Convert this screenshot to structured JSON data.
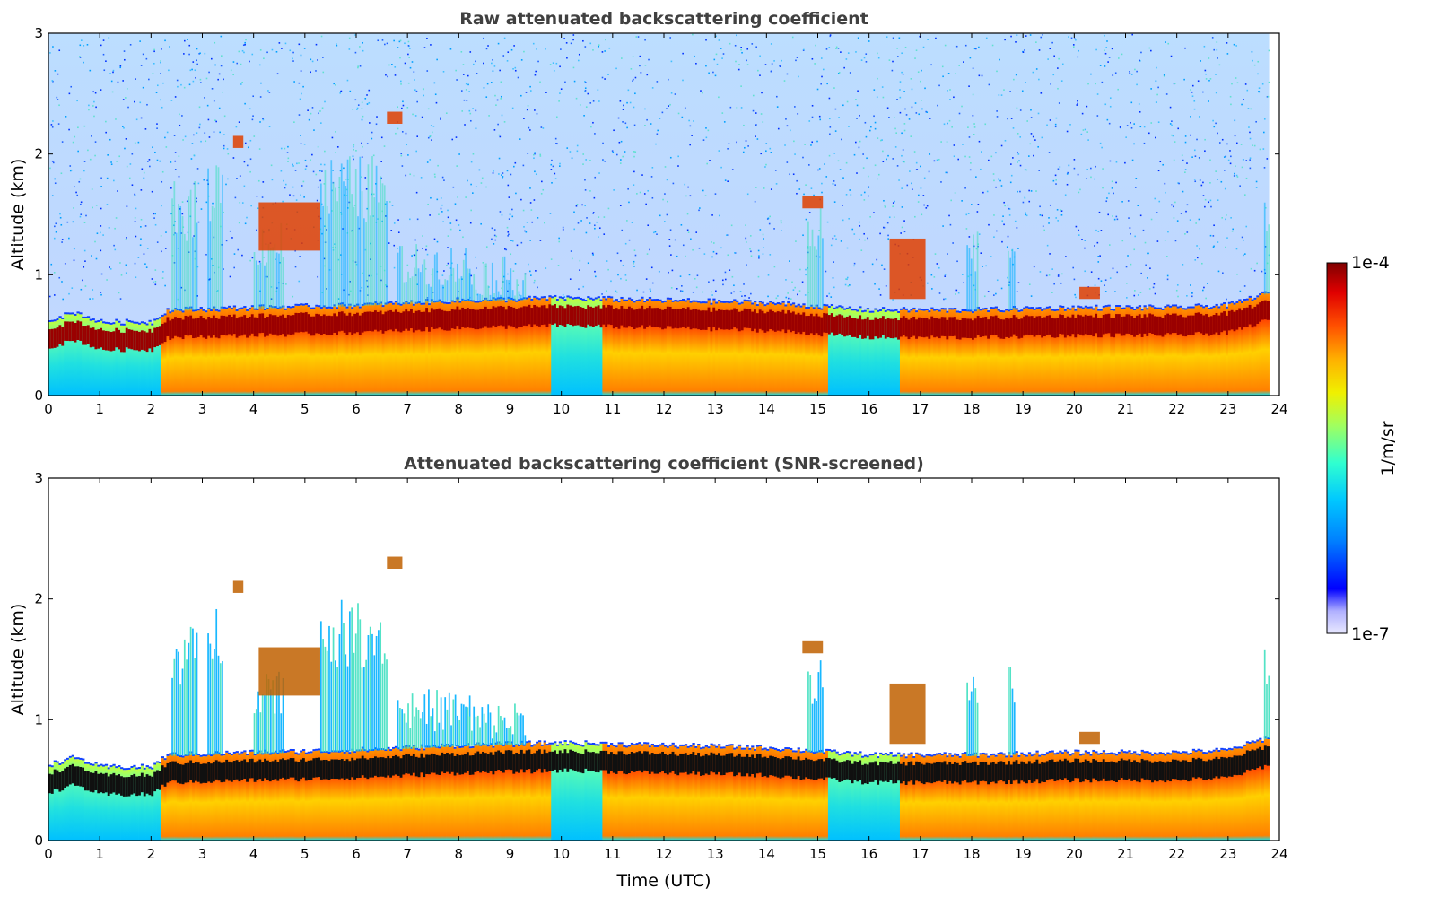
{
  "chart_data": [
    {
      "type": "heatmap",
      "title": "Raw attenuated backscattering coefficient",
      "xlabel": "",
      "ylabel": "Altitude (km)",
      "xlim": [
        0,
        24
      ],
      "ylim": [
        0,
        3
      ],
      "x_ticks": [
        0,
        1,
        2,
        3,
        4,
        5,
        6,
        7,
        8,
        9,
        10,
        11,
        12,
        13,
        14,
        15,
        16,
        17,
        18,
        19,
        20,
        21,
        22,
        23,
        24
      ],
      "y_ticks": [
        0,
        1,
        2,
        3
      ],
      "x_tick_labels": [
        "0",
        "1",
        "2",
        "3",
        "4",
        "5",
        "6",
        "7",
        "8",
        "9",
        "10",
        "11",
        "12",
        "13",
        "14",
        "15",
        "16",
        "17",
        "18",
        "19",
        "20",
        "21",
        "22",
        "23",
        "24"
      ],
      "y_tick_labels": [
        "0",
        "1",
        "2",
        "3"
      ],
      "screened": false,
      "data_end_hour": 23.8,
      "cloud_layer_top_km": [
        [
          0,
          0.62
        ],
        [
          0.5,
          0.68
        ],
        [
          1,
          0.6
        ],
        [
          2,
          0.6
        ],
        [
          2.3,
          0.7
        ],
        [
          4,
          0.72
        ],
        [
          6,
          0.74
        ],
        [
          8,
          0.78
        ],
        [
          10,
          0.8
        ],
        [
          12,
          0.78
        ],
        [
          14,
          0.76
        ],
        [
          16,
          0.7
        ],
        [
          18,
          0.7
        ],
        [
          20,
          0.72
        ],
        [
          22,
          0.72
        ],
        [
          23,
          0.74
        ],
        [
          23.8,
          0.85
        ]
      ],
      "features": [
        {
          "x": [
            3.6,
            3.8
          ],
          "altitude_km": 2.1,
          "label": ""
        },
        {
          "x": [
            6.6,
            6.9
          ],
          "altitude_km": 2.3,
          "label": ""
        },
        {
          "x": [
            4.1,
            5.3
          ],
          "altitude_km": [
            1.2,
            1.6
          ],
          "label": ""
        },
        {
          "x": [
            14.7,
            15.1
          ],
          "altitude_km": 1.6,
          "label": ""
        },
        {
          "x": [
            16.4,
            17.1
          ],
          "altitude_km": [
            0.8,
            1.3
          ],
          "label": ""
        },
        {
          "x": [
            20.1,
            20.5
          ],
          "altitude_km": 0.85,
          "label": ""
        }
      ]
    },
    {
      "type": "heatmap",
      "title": "Attenuated backscattering coefficient (SNR-screened)",
      "xlabel": "Time (UTC)",
      "ylabel": "Altitude (km)",
      "xlim": [
        0,
        24
      ],
      "ylim": [
        0,
        3
      ],
      "x_ticks": [
        0,
        1,
        2,
        3,
        4,
        5,
        6,
        7,
        8,
        9,
        10,
        11,
        12,
        13,
        14,
        15,
        16,
        17,
        18,
        19,
        20,
        21,
        22,
        23,
        24
      ],
      "y_ticks": [
        0,
        1,
        2,
        3
      ],
      "x_tick_labels": [
        "0",
        "1",
        "2",
        "3",
        "4",
        "5",
        "6",
        "7",
        "8",
        "9",
        "10",
        "11",
        "12",
        "13",
        "14",
        "15",
        "16",
        "17",
        "18",
        "19",
        "20",
        "21",
        "22",
        "23",
        "24"
      ],
      "y_tick_labels": [
        "0",
        "1",
        "2",
        "3"
      ],
      "screened": true,
      "data_end_hour": 23.8
    }
  ],
  "colorbar": {
    "label": "1/m/sr",
    "max_label": "1e-4",
    "min_label": "1e-7",
    "scale": "log",
    "range": [
      1e-07,
      0.0001
    ],
    "colormap": [
      "#e8e8ff",
      "#b0b0ff",
      "#0000ff",
      "#0080ff",
      "#00c8ff",
      "#30ffd0",
      "#a0ff60",
      "#f0f000",
      "#ffb000",
      "#ff5000",
      "#e00000",
      "#800000"
    ]
  }
}
